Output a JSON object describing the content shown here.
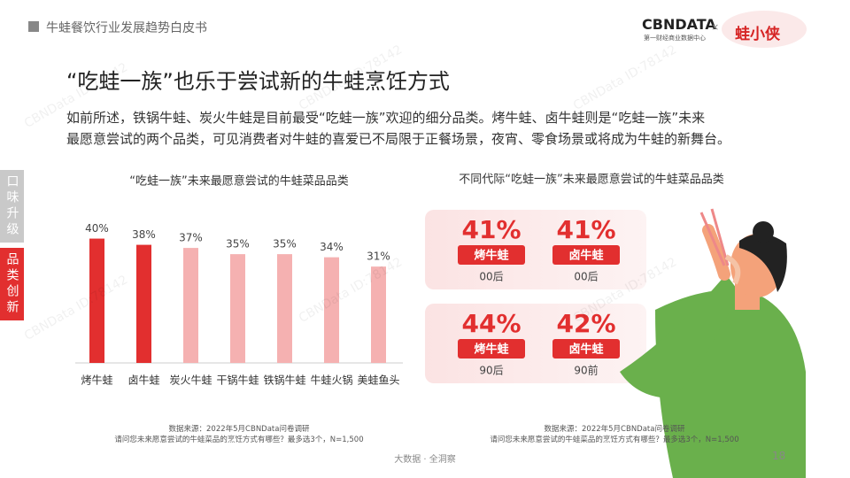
{
  "header": {
    "title": "牛蛙餐饮行业发展趋势白皮书",
    "logo": "CBNDATA",
    "logo_sub": "第一财经商业数据中心",
    "partner": "蛙小侠"
  },
  "heading": "“吃蛙一族”也乐于尝试新的牛蛙烹饪方式",
  "intro": [
    "如前所述，铁锅牛蛙、炭火牛蛙是目前最受“吃蛙一族”欢迎的细分品类。烤牛蛙、卤牛蛙则是“吃蛙一族”未来",
    "最愿意尝试的两个品类，可见消费者对牛蛙的喜爱已不局限于正餐场景，夜宵、零食场景或将成为牛蛙的新舞台。"
  ],
  "sidebar": [
    "口味升级",
    "品类创新"
  ],
  "watermark": "CBNData ID:78142",
  "chart_data": {
    "type": "bar",
    "title": "“吃蛙一族”未来最愿意尝试的牛蛙菜品品类",
    "categories": [
      "烤牛蛙",
      "卤牛蛙",
      "炭火牛蛙",
      "干锅牛蛙",
      "铁锅牛蛙",
      "牛蛙火锅",
      "美蛙鱼头"
    ],
    "values": [
      40,
      38,
      37,
      35,
      35,
      34,
      31
    ],
    "value_labels": [
      "40%",
      "38%",
      "37%",
      "35%",
      "35%",
      "34%",
      "31%"
    ],
    "colors": [
      "#e22f2f",
      "#e22f2f",
      "#f5b1b1",
      "#f5b1b1",
      "#f5b1b1",
      "#f5b1b1",
      "#f5b1b1"
    ],
    "ylim": [
      0,
      45
    ]
  },
  "cards": {
    "title": "不同代际“吃蛙一族”未来最愿意尝试的牛蛙菜品品类",
    "items": [
      {
        "percent": "41%",
        "dish": "烤牛蛙",
        "group": "00后"
      },
      {
        "percent": "41%",
        "dish": "卤牛蛙",
        "group": "00后"
      },
      {
        "percent": "44%",
        "dish": "烤牛蛙",
        "group": "90后"
      },
      {
        "percent": "42%",
        "dish": "卤牛蛙",
        "group": "90前"
      }
    ]
  },
  "sources": [
    {
      "line1": "数据来源：2022年5月CBNData问卷调研",
      "line2": "请问您未来愿意尝试的牛蛙菜品的烹饪方式有哪些？最多选3个，N=1,500"
    },
    {
      "line1": "数据来源：2022年5月CBNData问卷调研",
      "line2": "请问您未来愿意尝试的牛蛙菜品的烹饪方式有哪些？最多选3个，N=1,500"
    }
  ],
  "footer": {
    "slogan": "大数据 · 全洞察",
    "page": "18"
  }
}
